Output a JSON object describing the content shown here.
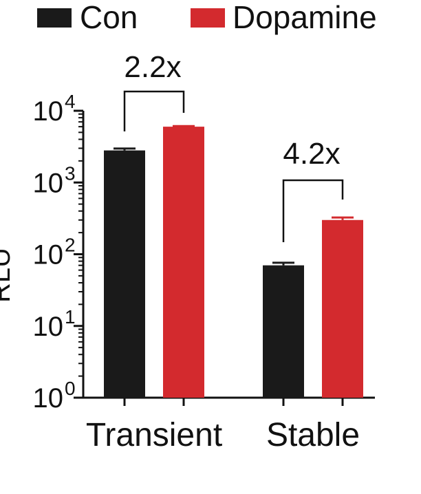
{
  "chart_data": {
    "type": "bar",
    "yscale": "log",
    "ylim": [
      1,
      10000
    ],
    "ylabel": "RLU",
    "categories": [
      "Transient",
      "Stable"
    ],
    "series": [
      {
        "name": "Con",
        "color": "#1a1a1a",
        "values": [
          2800,
          70
        ],
        "errors": [
          180,
          6
        ]
      },
      {
        "name": "Dopamine",
        "color": "#d32a2e",
        "values": [
          6000,
          300
        ],
        "errors": [
          120,
          25
        ]
      }
    ],
    "yticks": [
      {
        "value": 1,
        "base": "10",
        "exp": "0"
      },
      {
        "value": 10,
        "base": "10",
        "exp": "1"
      },
      {
        "value": 100,
        "base": "10",
        "exp": "2"
      },
      {
        "value": 1000,
        "base": "10",
        "exp": "3"
      },
      {
        "value": 10000,
        "base": "10",
        "exp": "4"
      }
    ],
    "annotations": [
      "2.2x",
      "4.2x"
    ],
    "legend_position": "top"
  }
}
